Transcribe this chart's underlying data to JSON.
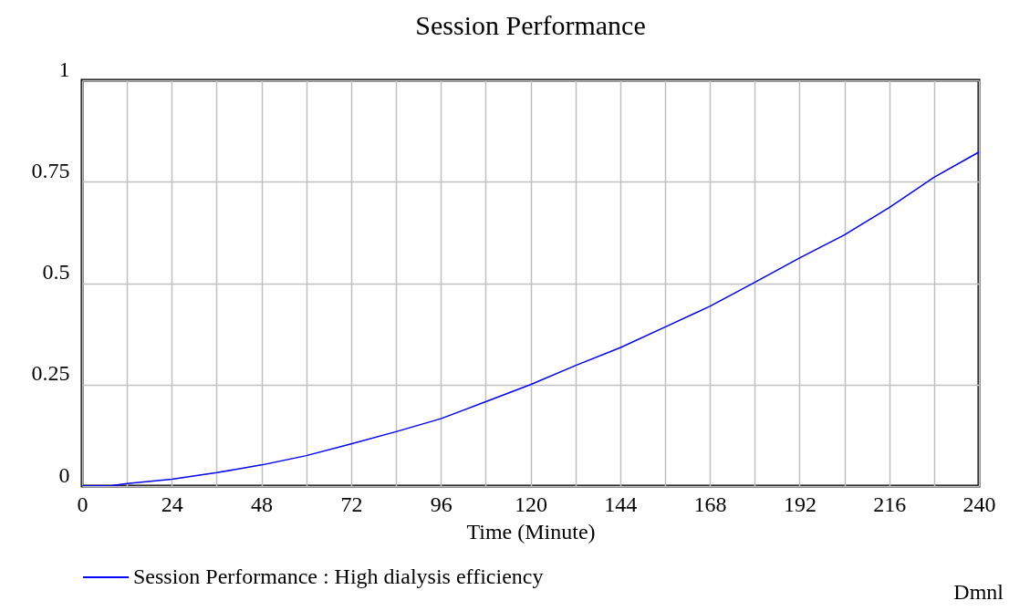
{
  "chart_data": {
    "type": "line",
    "title": "Session Performance",
    "xlabel": "Time (Minute)",
    "x": [
      0,
      8,
      12,
      24,
      36,
      48,
      60,
      72,
      84,
      96,
      108,
      120,
      132,
      144,
      156,
      168,
      180,
      192,
      204,
      216,
      228,
      240
    ],
    "series": [
      {
        "name": "Session Performance : High dialysis efficiency",
        "color": "#0000ff",
        "values": [
          0,
          0.001,
          0.006,
          0.017,
          0.033,
          0.052,
          0.075,
          0.104,
          0.134,
          0.166,
          0.208,
          0.25,
          0.297,
          0.341,
          0.392,
          0.443,
          0.502,
          0.562,
          0.619,
          0.686,
          0.761,
          0.823
        ]
      }
    ],
    "xlim": [
      0,
      240
    ],
    "xticks": [
      0,
      {
        "value": 12,
        "label": null
      },
      24,
      {
        "value": 36,
        "label": null
      },
      48,
      {
        "value": 60,
        "label": null
      },
      72,
      {
        "value": 84,
        "label": null
      },
      96,
      {
        "value": 108,
        "label": null
      },
      120,
      {
        "value": 132,
        "label": null
      },
      144,
      {
        "value": 156,
        "label": null
      },
      168,
      {
        "value": 180,
        "label": null
      },
      192,
      {
        "value": 204,
        "label": null
      },
      216,
      {
        "value": 228,
        "label": null
      },
      240
    ],
    "ylim": [
      0,
      1
    ],
    "yticks": [
      0,
      0.25,
      0.5,
      0.75,
      1
    ],
    "grid": true,
    "legend": "bottom",
    "annotations": [
      "Dmnl"
    ]
  }
}
